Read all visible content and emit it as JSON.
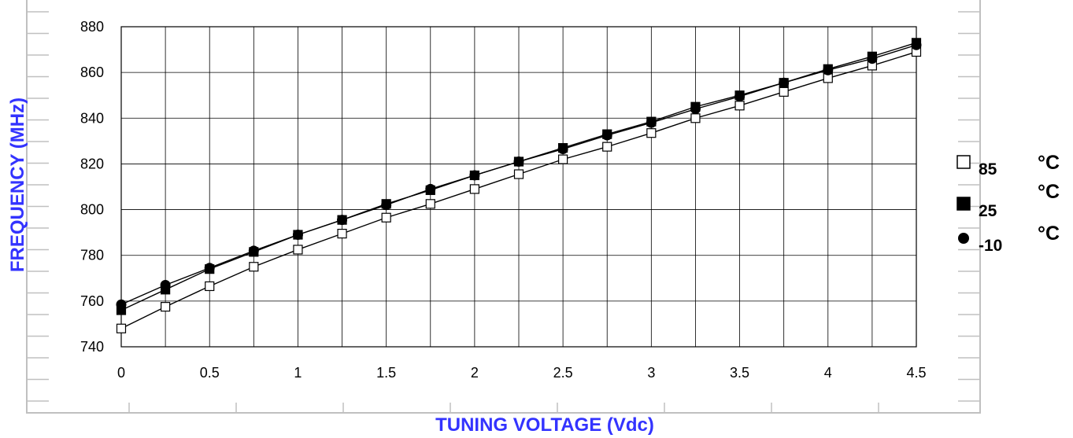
{
  "chart_data": {
    "type": "line",
    "title": "",
    "xlabel": "TUNING VOLTAGE (Vdc)",
    "ylabel": "FREQUENCY (MHz)",
    "xlim": [
      0,
      4.5
    ],
    "ylim": [
      740,
      880
    ],
    "x_ticks": [
      "0",
      "0.5",
      "1",
      "1.5",
      "2",
      "2.5",
      "3",
      "3.5",
      "4",
      "4.5"
    ],
    "y_ticks": [
      "740",
      "760",
      "780",
      "800",
      "820",
      "840",
      "860",
      "880"
    ],
    "grid": true,
    "legend_position": "right",
    "temp_unit": "°C",
    "x": [
      0,
      0.25,
      0.5,
      0.75,
      1,
      1.25,
      1.5,
      1.75,
      2,
      2.25,
      2.5,
      2.75,
      3,
      3.25,
      3.5,
      3.75,
      4,
      4.25,
      4.5
    ],
    "series": [
      {
        "name": "85",
        "marker": "open-square",
        "values": [
          748,
          757.5,
          766.5,
          775,
          782.5,
          789.5,
          796.5,
          802.5,
          809,
          815.5,
          822,
          827.5,
          833.5,
          840,
          845.5,
          851.5,
          857.5,
          863,
          869
        ]
      },
      {
        "name": "25",
        "marker": "filled-square",
        "values": [
          756,
          765,
          774,
          781.5,
          789,
          795.5,
          802.5,
          808.5,
          815,
          821,
          827,
          833,
          838.5,
          845,
          850,
          855.5,
          861.5,
          867,
          873
        ]
      },
      {
        "name": "-10",
        "marker": "filled-circle",
        "values": [
          758.5,
          767,
          774.5,
          782,
          789,
          795.5,
          802,
          809,
          815,
          821,
          826.5,
          832.5,
          838,
          844,
          849.5,
          855.5,
          861,
          866,
          872
        ]
      }
    ]
  },
  "colors": {
    "axis_title": "#3333ff",
    "frame": "#c0c0c0",
    "grid": "#000000",
    "line": "#000000"
  }
}
